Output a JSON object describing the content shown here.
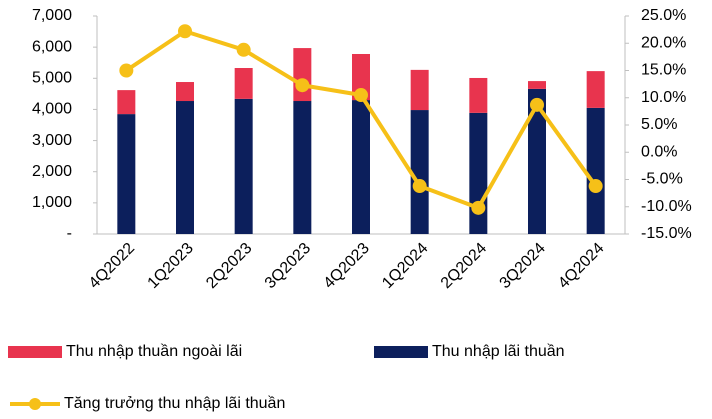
{
  "chart_data": {
    "type": "bar-line",
    "categories": [
      "4Q2022",
      "1Q2023",
      "2Q2023",
      "3Q2023",
      "4Q2023",
      "1Q2024",
      "2Q2024",
      "3Q2024",
      "4Q2024"
    ],
    "series": [
      {
        "name": "Thu nhập lãi thuần",
        "type": "bar",
        "color": "#0c1f5c",
        "values": [
          3850,
          4270,
          4340,
          4270,
          4300,
          3980,
          3890,
          4660,
          4050
        ]
      },
      {
        "name": "Thu nhập thuần ngoài lãi",
        "type": "bar",
        "color": "#e8344e",
        "values": [
          770,
          610,
          990,
          1700,
          1480,
          1290,
          1120,
          250,
          1180
        ]
      },
      {
        "name": "Tăng trưởng thu nhập lãi thuần",
        "type": "line",
        "axis": "y2",
        "color": "#f6c018",
        "values": [
          15.0,
          22.2,
          18.8,
          12.3,
          10.5,
          -6.2,
          -10.2,
          8.7,
          -6.2
        ]
      }
    ],
    "stacked": true,
    "ylim": [
      0,
      7000
    ],
    "yticks": [
      {
        "value": 0,
        "label": "-"
      },
      {
        "value": 1000,
        "label": "1,000"
      },
      {
        "value": 2000,
        "label": "2,000"
      },
      {
        "value": 3000,
        "label": "3,000"
      },
      {
        "value": 4000,
        "label": "4,000"
      },
      {
        "value": 5000,
        "label": "5,000"
      },
      {
        "value": 6000,
        "label": "6,000"
      },
      {
        "value": 7000,
        "label": "7,000"
      }
    ],
    "y2lim": [
      -15,
      25
    ],
    "y2ticks": [
      {
        "value": -15,
        "label": "-15.0%"
      },
      {
        "value": -10,
        "label": "-10.0%"
      },
      {
        "value": -5,
        "label": "-5.0%"
      },
      {
        "value": 0,
        "label": "0.0%"
      },
      {
        "value": 5,
        "label": "5.0%"
      },
      {
        "value": 10,
        "label": "10.0%"
      },
      {
        "value": 15,
        "label": "15.0%"
      },
      {
        "value": 20,
        "label": "20.0%"
      },
      {
        "value": 25,
        "label": "25.0%"
      }
    ],
    "grid": false
  }
}
